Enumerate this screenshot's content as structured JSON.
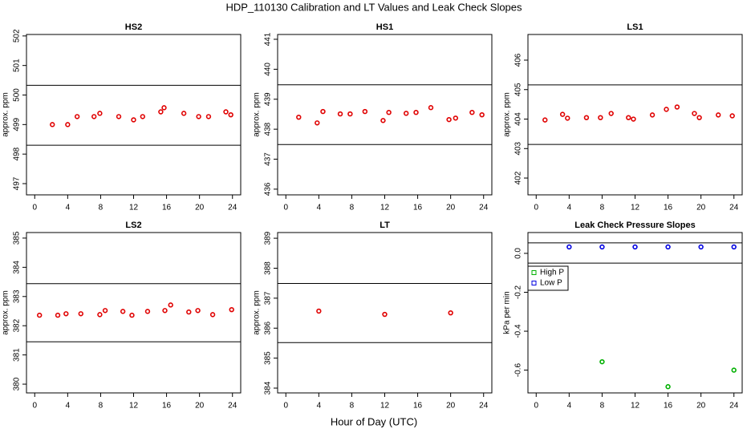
{
  "title": "HDP_110130  Calibration and LT Values and Leak Check Slopes",
  "x_label": "Hour of Day (UTC)",
  "chart_data": [
    {
      "type": "scatter",
      "title": "HS2",
      "ylabel": "approx. ppm",
      "color": "#e00000",
      "x": [
        2.14,
        4.0,
        5.15,
        7.2,
        7.9,
        10.2,
        12.0,
        13.1,
        15.3,
        15.7,
        18.1,
        19.9,
        21.1,
        23.2,
        23.8
      ],
      "values": [
        499.0,
        499.0,
        499.27,
        499.27,
        499.38,
        499.27,
        499.16,
        499.27,
        499.43,
        499.57,
        499.38,
        499.27,
        499.27,
        499.43,
        499.33
      ],
      "xlim": [
        -1,
        25
      ],
      "xticks": [
        0,
        4,
        8,
        12,
        16,
        20,
        24
      ],
      "ylim": [
        496.62,
        502.05
      ],
      "yticks": [
        497,
        498,
        499,
        500,
        501,
        502
      ],
      "hlines": [
        500.33,
        498.3
      ]
    },
    {
      "type": "scatter",
      "title": "HS1",
      "ylabel": "approx. ppm",
      "color": "#e00000",
      "x": [
        1.56,
        3.8,
        4.5,
        6.6,
        7.8,
        9.6,
        11.8,
        12.5,
        14.6,
        15.8,
        17.6,
        19.8,
        20.6,
        22.6,
        23.8
      ],
      "values": [
        438.4,
        438.21,
        438.59,
        438.51,
        438.51,
        438.59,
        438.29,
        438.56,
        438.53,
        438.56,
        438.72,
        438.32,
        438.37,
        438.56,
        438.48
      ],
      "xlim": [
        -1,
        25
      ],
      "xticks": [
        0,
        4,
        8,
        12,
        16,
        20,
        24
      ],
      "ylim": [
        435.81,
        441.16
      ],
      "yticks": [
        436,
        437,
        438,
        439,
        440,
        441
      ],
      "hlines": [
        439.48,
        437.49
      ]
    },
    {
      "type": "scatter",
      "title": "LS1",
      "ylabel": "approx. ppm",
      "color": "#e00000",
      "x": [
        1.07,
        3.2,
        3.8,
        6.1,
        7.8,
        9.1,
        11.2,
        11.8,
        14.1,
        15.8,
        17.1,
        19.2,
        19.8,
        22.1,
        23.8
      ],
      "values": [
        403.97,
        404.16,
        404.03,
        404.05,
        404.05,
        404.19,
        404.05,
        404.0,
        404.14,
        404.33,
        404.41,
        404.19,
        404.05,
        404.14,
        404.11
      ],
      "xlim": [
        -1,
        25
      ],
      "xticks": [
        0,
        4,
        8,
        12,
        16,
        20,
        24
      ],
      "ylim": [
        401.43,
        406.87
      ],
      "yticks": [
        402,
        403,
        404,
        405,
        406
      ],
      "hlines": [
        405.16,
        403.14
      ]
    },
    {
      "type": "scatter",
      "title": "LS2",
      "ylabel": "approx. ppm",
      "color": "#e00000",
      "x": [
        0.58,
        2.8,
        3.8,
        5.6,
        7.9,
        8.55,
        10.7,
        11.8,
        13.7,
        15.8,
        16.5,
        18.7,
        19.8,
        21.6,
        23.9
      ],
      "values": [
        382.36,
        382.36,
        382.41,
        382.41,
        382.38,
        382.52,
        382.49,
        382.36,
        382.49,
        382.52,
        382.71,
        382.47,
        382.52,
        382.38,
        382.55
      ],
      "xlim": [
        -1,
        25
      ],
      "xticks": [
        0,
        4,
        8,
        12,
        16,
        20,
        24
      ],
      "ylim": [
        379.7,
        385.19
      ],
      "yticks": [
        380,
        381,
        382,
        383,
        384,
        385
      ],
      "hlines": [
        383.44,
        381.45
      ]
    },
    {
      "type": "scatter",
      "title": "LT",
      "ylabel": "approx. ppm",
      "color": "#e00000",
      "x": [
        4.0,
        12.0,
        20.0
      ],
      "values": [
        386.57,
        386.46,
        386.51
      ],
      "xlim": [
        -1,
        25
      ],
      "xticks": [
        0,
        4,
        8,
        12,
        16,
        20,
        24
      ],
      "ylim": [
        383.84,
        389.19
      ],
      "yticks": [
        384,
        385,
        386,
        387,
        388,
        389
      ],
      "hlines": [
        387.49,
        385.52
      ]
    },
    {
      "type": "scatter",
      "title": "Leak Check Pressure Slopes",
      "ylabel": "kPa per min",
      "legend": "upper left",
      "series": [
        {
          "name": "High P",
          "color": "#00b000",
          "x": [
            8,
            16,
            24
          ],
          "values": [
            -0.557,
            -0.685,
            -0.6
          ]
        },
        {
          "name": "Low P",
          "color": "#0000e0",
          "x": [
            4,
            8,
            12,
            16,
            20,
            24
          ],
          "values": [
            0.033,
            0.033,
            0.033,
            0.033,
            0.033,
            0.033
          ]
        }
      ],
      "xlim": [
        -1,
        25
      ],
      "xticks": [
        0,
        4,
        8,
        12,
        16,
        20,
        24
      ],
      "ylim": [
        -0.717,
        0.107
      ],
      "yticks": [
        {
          "value": 0,
          "label": "0.0"
        },
        -0.2,
        -0.4,
        -0.6
      ],
      "hlines": [
        0.054,
        -0.05
      ]
    }
  ]
}
